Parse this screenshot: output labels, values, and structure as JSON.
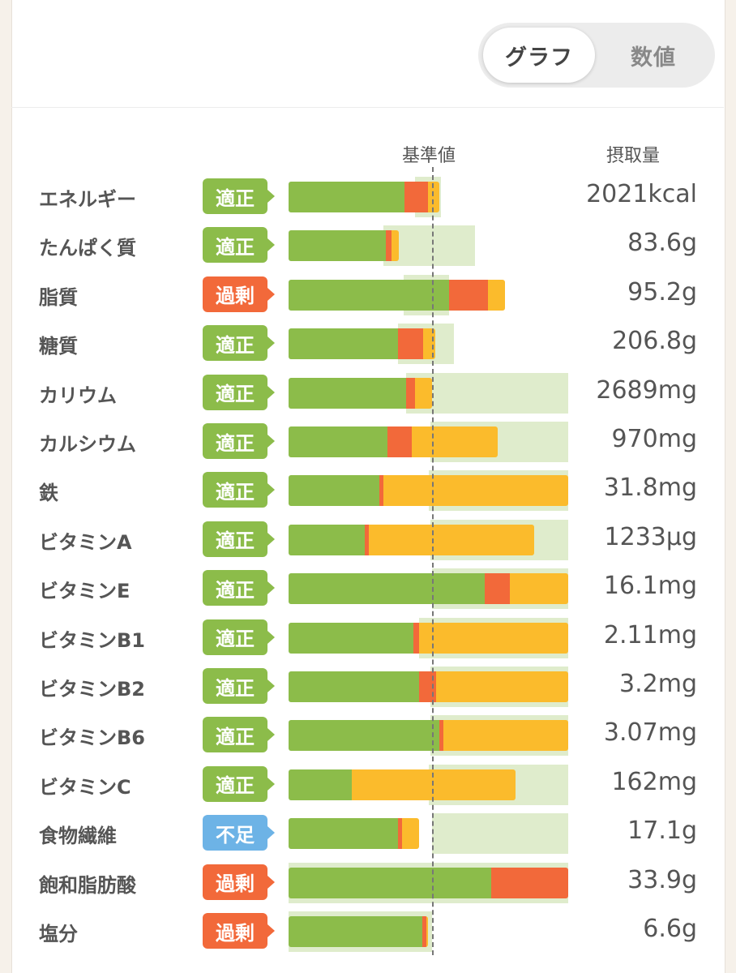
{
  "toggle": {
    "graph_label": "グラフ",
    "number_label": "数値",
    "selected": "グラフ"
  },
  "headers": {
    "reference": "基準値",
    "intake": "摂取量"
  },
  "colors": {
    "green": "#8cbc4a",
    "red": "#f2693a",
    "yellow": "#fbbb2c",
    "blue": "#6db3e6",
    "band": "#dfeccc"
  },
  "chart_data": {
    "type": "bar",
    "reference_marker_percent": 100,
    "rows": [
      {
        "name": "エネルギー",
        "status": "適正",
        "status_kind": "ok",
        "value": "2021kcal",
        "green": 81,
        "red": 16,
        "yellow": 8,
        "band_from": 88,
        "band_to": 106
      },
      {
        "name": "たんぱく質",
        "status": "適正",
        "status_kind": "ok",
        "value": "83.6g",
        "green": 68,
        "red": 4,
        "yellow": 5,
        "band_from": 66,
        "band_to": 130
      },
      {
        "name": "脂質",
        "status": "過剰",
        "status_kind": "over",
        "value": "95.2g",
        "green": 112,
        "red": 27,
        "yellow": 12,
        "band_from": 80,
        "band_to": 112
      },
      {
        "name": "糖質",
        "status": "適正",
        "status_kind": "ok",
        "value": "206.8g",
        "green": 76,
        "red": 18,
        "yellow": 8,
        "band_from": 76,
        "band_to": 115
      },
      {
        "name": "カリウム",
        "status": "適正",
        "status_kind": "ok",
        "value": "2689mg",
        "green": 82,
        "red": 6,
        "yellow": 12,
        "band_from": 82,
        "band_to": 195
      },
      {
        "name": "カルシウム",
        "status": "適正",
        "status_kind": "ok",
        "value": "970mg",
        "green": 69,
        "red": 17,
        "yellow": 60,
        "band_from": 99,
        "band_to": 195
      },
      {
        "name": "鉄",
        "status": "適正",
        "status_kind": "ok",
        "value": "31.8mg",
        "green": 63,
        "red": 3,
        "yellow": 129,
        "band_from": 98,
        "band_to": 195
      },
      {
        "name": "ビタミンA",
        "status": "適正",
        "status_kind": "ok",
        "value": "1233μg",
        "green": 53,
        "red": 3,
        "yellow": 115,
        "band_from": 99,
        "band_to": 195
      },
      {
        "name": "ビタミンE",
        "status": "適正",
        "status_kind": "ok",
        "value": "16.1mg",
        "green": 137,
        "red": 17,
        "yellow": 41,
        "band_from": 100,
        "band_to": 195
      },
      {
        "name": "ビタミンB1",
        "status": "適正",
        "status_kind": "ok",
        "value": "2.11mg",
        "green": 87,
        "red": 4,
        "yellow": 104,
        "band_from": 91,
        "band_to": 195
      },
      {
        "name": "ビタミンB2",
        "status": "適正",
        "status_kind": "ok",
        "value": "3.2mg",
        "green": 91,
        "red": 12,
        "yellow": 92,
        "band_from": 99,
        "band_to": 195
      },
      {
        "name": "ビタミンB6",
        "status": "適正",
        "status_kind": "ok",
        "value": "3.07mg",
        "green": 105,
        "red": 3,
        "yellow": 87,
        "band_from": 99,
        "band_to": 195
      },
      {
        "name": "ビタミンC",
        "status": "適正",
        "status_kind": "ok",
        "value": "162mg",
        "green": 44,
        "red": 0,
        "yellow": 114,
        "band_from": 98,
        "band_to": 195
      },
      {
        "name": "食物繊維",
        "status": "不足",
        "status_kind": "under",
        "value": "17.1g",
        "green": 76,
        "red": 3,
        "yellow": 12,
        "band_from": 100,
        "band_to": 195
      },
      {
        "name": "飽和脂肪酸",
        "status": "過剰",
        "status_kind": "over",
        "value": "33.9g",
        "green": 141,
        "red": 54,
        "yellow": 0,
        "band_from": 0,
        "band_to": 195
      },
      {
        "name": "塩分",
        "status": "過剰",
        "status_kind": "over",
        "value": "6.6g",
        "green": 93,
        "red": 3,
        "yellow": 1,
        "band_from": 0,
        "band_to": 100
      }
    ]
  }
}
